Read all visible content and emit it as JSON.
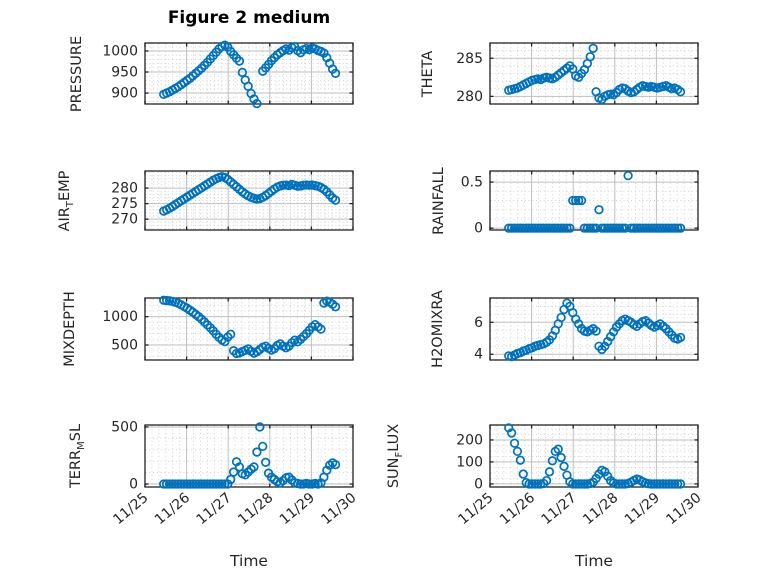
{
  "title": "Figure 2 medium",
  "colors": {
    "marker": "#0072BD",
    "axis": "#222222",
    "grid": "#bfbfbf",
    "minor_grid": "#cccccc",
    "text": "#262626"
  },
  "chart_data": {
    "type": "scatter",
    "marker": "open-circle",
    "marker_color": "#0072BD",
    "title": "Figure 2 medium",
    "xlabel": "Time",
    "x_unit": "days since 11/25",
    "xlim_days": [
      0,
      5
    ],
    "xticks_days": [
      0,
      1,
      2,
      3,
      4,
      5
    ],
    "xtick_labels": [
      "11/25",
      "11/26",
      "11/27",
      "11/28",
      "11/29",
      "11/30"
    ],
    "x_minor_per_day": 6,
    "grid": "major and dotted minor, box on",
    "layout": "4 rows x 2 columns, shared x axis, x tick labels rotated 40deg on bottom row only",
    "plots": [
      {
        "name": "PRESSURE",
        "ylabel": {
          "pre": "PRESSURE",
          "sub": "",
          "post": ""
        },
        "ylim": [
          874,
          1019
        ],
        "yticks": [
          900,
          950,
          1000
        ],
        "ytick_labels": [
          "900",
          "950",
          "1000"
        ],
        "y_minor_step": 10,
        "ylabel_center_x": 77,
        "t0": 0.45,
        "dt": 0.07,
        "y": [
          897,
          900,
          903,
          907,
          911,
          915,
          920,
          925,
          930,
          935,
          941,
          947,
          953,
          959,
          966,
          973,
          981,
          989,
          997,
          1005,
          1011,
          1014,
          1009,
          999,
          991,
          983,
          976,
          949,
          931,
          916,
          899,
          886,
          875,
          null,
          952,
          960,
          968,
          977,
          984,
          991,
          996,
          1001,
          1005,
          1002,
          1008,
          1010,
          1001,
          996,
          1003,
          1006,
          1003,
          1007,
          1005,
          1001,
          999,
          995,
          984,
          971,
          957,
          947
        ]
      },
      {
        "name": "THETA",
        "ylabel": {
          "pre": "THETA",
          "sub": "",
          "post": ""
        },
        "ylim": [
          279,
          287
        ],
        "yticks": [
          280,
          285
        ],
        "ytick_labels": [
          "280",
          "285"
        ],
        "y_minor_step": 1,
        "ylabel_center_x": 428,
        "t0": 0.45,
        "dt": 0.07,
        "y": [
          280.8,
          280.9,
          281.0,
          281.1,
          281.3,
          281.5,
          281.7,
          281.9,
          282.1,
          282.2,
          282.3,
          282.2,
          282.4,
          282.5,
          282.4,
          282.3,
          282.5,
          282.8,
          283.1,
          283.4,
          283.7,
          284.0,
          283.6,
          282.7,
          282.5,
          283.0,
          283.5,
          284.3,
          285.2,
          286.3,
          280.6,
          279.8,
          279.6,
          280.0,
          280.2,
          280.3,
          280.2,
          280.5,
          280.9,
          281.1,
          281.0,
          280.7,
          280.5,
          280.6,
          280.9,
          281.2,
          281.4,
          281.3,
          281.2,
          281.3,
          281.2,
          281.1,
          281.2,
          281.3,
          281.4,
          281.2,
          281.0,
          281.1,
          280.9,
          280.6
        ]
      },
      {
        "name": "AIR_TEMP",
        "ylabel": {
          "pre": "AIR",
          "sub": "T",
          "post": "EMP"
        },
        "ylim": [
          266.5,
          285.5
        ],
        "yticks": [
          270,
          275,
          280
        ],
        "ytick_labels": [
          "270",
          "275",
          "280"
        ],
        "y_minor_step": 1,
        "ylabel_center_x": 67,
        "t0": 0.45,
        "dt": 0.07,
        "y": [
          272.6,
          273.0,
          273.5,
          274.1,
          274.7,
          275.3,
          275.9,
          276.5,
          277.1,
          277.7,
          278.3,
          278.9,
          279.5,
          280.1,
          280.7,
          281.3,
          281.9,
          282.5,
          283.0,
          283.4,
          283.7,
          283.4,
          282.8,
          282.0,
          281.2,
          280.4,
          279.6,
          278.8,
          278.1,
          277.5,
          277.0,
          276.7,
          276.5,
          276.6,
          277.0,
          277.6,
          278.3,
          279.0,
          279.7,
          280.3,
          280.7,
          280.9,
          281.0,
          280.8,
          281.2,
          280.9,
          280.6,
          280.7,
          280.9,
          281.0,
          280.9,
          281.0,
          280.8,
          280.6,
          280.2,
          279.6,
          278.8,
          277.8,
          276.8,
          276.1
        ]
      },
      {
        "name": "RAINFALL",
        "ylabel": {
          "pre": "RAINFALL",
          "sub": "",
          "post": ""
        },
        "ylim": [
          -0.02,
          0.62
        ],
        "yticks": [
          0,
          0.5
        ],
        "ytick_labels": [
          "0",
          "0.5"
        ],
        "y_minor_step": 0.1,
        "ylabel_center_x": 439,
        "t0": 0.45,
        "dt": 0.07,
        "y": [
          0,
          0,
          0,
          0,
          0,
          0,
          0,
          0,
          0,
          0,
          0,
          0,
          0,
          0,
          0,
          0,
          0,
          0,
          0,
          0,
          0,
          0,
          0.3,
          0.3,
          0.3,
          0.3,
          0,
          0,
          0,
          0,
          0,
          0.2,
          0,
          0,
          0,
          0,
          0,
          0,
          0,
          0,
          0,
          0.57,
          0,
          0,
          0,
          0,
          0,
          0,
          0,
          0,
          0,
          0,
          0,
          0,
          0,
          0,
          0,
          0,
          0,
          0
        ]
      },
      {
        "name": "MIXDEPTH",
        "ylabel": {
          "pre": "MIXDEPTH",
          "sub": "",
          "post": ""
        },
        "ylim": [
          235,
          1330
        ],
        "yticks": [
          500,
          1000
        ],
        "ytick_labels": [
          "500",
          "1000"
        ],
        "y_minor_step": 100,
        "ylabel_center_x": 70,
        "t0": 0.45,
        "dt": 0.07,
        "y": [
          1290,
          1285,
          1280,
          1270,
          1255,
          1235,
          1210,
          1180,
          1150,
          1115,
          1080,
          1040,
          1000,
          955,
          905,
          855,
          805,
          750,
          690,
          635,
          590,
          560,
          640,
          690,
          400,
          350,
          360,
          385,
          405,
          430,
          390,
          355,
          380,
          420,
          460,
          480,
          440,
          410,
          435,
          490,
          520,
          480,
          450,
          480,
          540,
          585,
          555,
          600,
          650,
          700,
          760,
          820,
          860,
          820,
          780,
          1240,
          1275,
          1255,
          1220,
          1175
        ]
      },
      {
        "name": "H2OMIXRA",
        "ylabel": {
          "pre": "H2OMIXRA",
          "sub": "",
          "post": ""
        },
        "ylim": [
          3.64,
          7.52
        ],
        "yticks": [
          4,
          6
        ],
        "ytick_labels": [
          "4",
          "6"
        ],
        "y_minor_step": 0.5,
        "ylabel_center_x": 438,
        "t0": 0.45,
        "dt": 0.07,
        "y": [
          3.9,
          3.85,
          3.95,
          4.05,
          4.1,
          4.2,
          4.25,
          4.35,
          4.4,
          4.5,
          4.55,
          4.6,
          4.65,
          4.75,
          4.9,
          5.15,
          5.5,
          5.9,
          6.3,
          6.8,
          7.2,
          7.0,
          6.6,
          6.2,
          5.9,
          5.6,
          5.45,
          5.4,
          5.5,
          5.6,
          5.45,
          4.5,
          4.3,
          4.5,
          4.8,
          5.1,
          5.4,
          5.7,
          5.9,
          6.1,
          6.2,
          6.1,
          6.0,
          5.85,
          5.75,
          5.9,
          6.05,
          6.1,
          5.95,
          5.8,
          5.7,
          5.8,
          5.9,
          5.75,
          5.6,
          5.4,
          5.2,
          5.0,
          4.95,
          5.05
        ]
      },
      {
        "name": "TERR_MSL",
        "ylabel": {
          "pre": "TERR",
          "sub": "M",
          "post": "SL"
        },
        "ylim": [
          -26,
          517
        ],
        "yticks": [
          0,
          500
        ],
        "ytick_labels": [
          "0",
          "500"
        ],
        "y_minor_step": 100,
        "ylabel_center_x": 78,
        "t0": 0.45,
        "dt": 0.07,
        "y": [
          0,
          0,
          0,
          0,
          0,
          0,
          0,
          0,
          0,
          0,
          0,
          0,
          0,
          0,
          0,
          0,
          0,
          0,
          0,
          0,
          0,
          0,
          0,
          40,
          105,
          195,
          150,
          90,
          80,
          105,
          130,
          150,
          280,
          500,
          330,
          190,
          95,
          60,
          40,
          20,
          10,
          30,
          55,
          60,
          35,
          10,
          5,
          0,
          0,
          5,
          0,
          0,
          5,
          0,
          10,
          60,
          120,
          165,
          185,
          170
        ]
      },
      {
        "name": "SUN_FLUX",
        "ylabel": {
          "pre": "SUN",
          "sub": "F",
          "post": "LUX"
        },
        "ylim": [
          -14,
          268
        ],
        "yticks": [
          0,
          100,
          200
        ],
        "ytick_labels": [
          "0",
          "100",
          "200"
        ],
        "y_minor_step": 25,
        "ylabel_center_x": 396,
        "t0": 0.45,
        "dt": 0.07,
        "y": [
          255,
          232,
          185,
          148,
          108,
          45,
          6,
          0,
          0,
          0,
          0,
          0,
          2,
          15,
          55,
          105,
          148,
          158,
          120,
          80,
          40,
          10,
          0,
          0,
          0,
          0,
          0,
          0,
          2,
          8,
          25,
          45,
          62,
          55,
          35,
          15,
          4,
          0,
          0,
          0,
          0,
          2,
          8,
          16,
          22,
          18,
          10,
          4,
          1,
          0,
          0,
          0,
          0,
          0,
          0,
          0,
          0,
          0,
          0,
          0
        ]
      }
    ]
  }
}
